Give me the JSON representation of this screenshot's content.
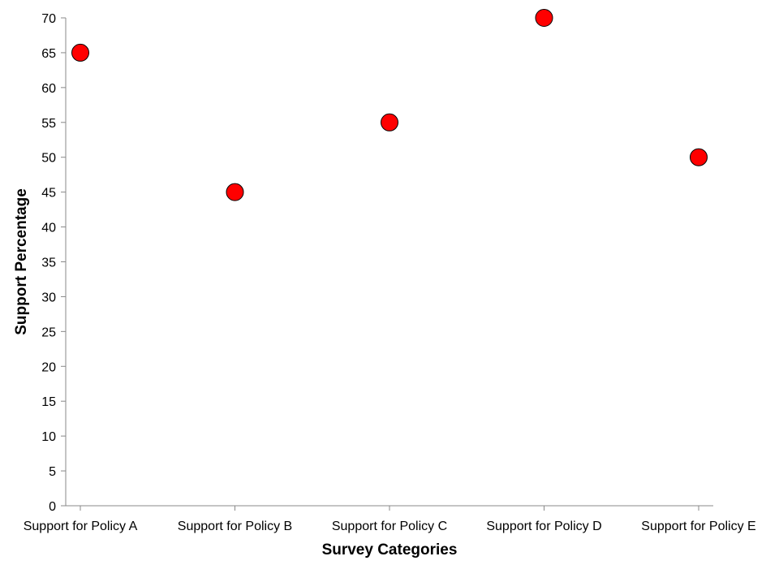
{
  "chart_data": {
    "type": "scatter",
    "title": "",
    "xlabel": "Survey Categories",
    "ylabel": "Support Percentage",
    "categories": [
      "Support for Policy A",
      "Support for Policy B",
      "Support for Policy C",
      "Support for Policy D",
      "Support for Policy E"
    ],
    "values": [
      65,
      45,
      55,
      70,
      50
    ],
    "ylim": [
      0,
      70
    ],
    "yticks": [
      0,
      5,
      10,
      15,
      20,
      25,
      30,
      35,
      40,
      45,
      50,
      55,
      60,
      65,
      70
    ],
    "grid": false,
    "legend": "none",
    "marker_color": "#ff0000",
    "marker_stroke": "#000000",
    "axis_color": "#888888"
  }
}
